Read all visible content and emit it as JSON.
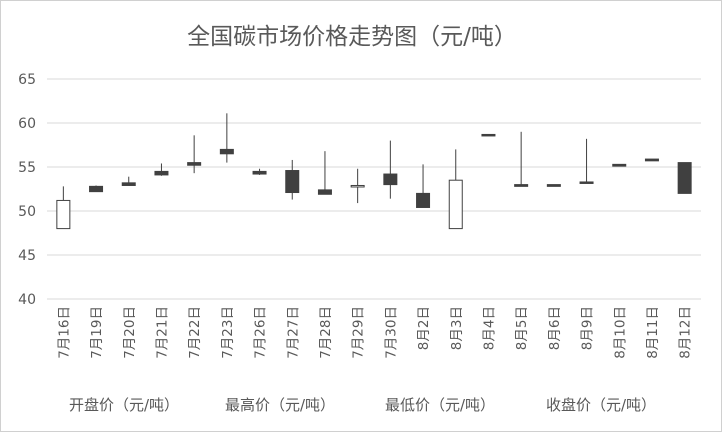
{
  "chart_data": {
    "type": "candlestick",
    "title": "全国碳市场价格走势图（元/吨）",
    "ylim": [
      40,
      65
    ],
    "y_ticks": [
      "40",
      "45",
      "50",
      "55",
      "60",
      "65"
    ],
    "grid": true,
    "legend_position": "bottom",
    "categories": [
      "7月16日",
      "7月19日",
      "7月20日",
      "7月21日",
      "7月22日",
      "7月23日",
      "7月26日",
      "7月27日",
      "7月28日",
      "7月29日",
      "7月30日",
      "8月2日",
      "8月3日",
      "8月4日",
      "8月5日",
      "8月6日",
      "8月9日",
      "8月10日",
      "8月11日",
      "8月12日"
    ],
    "series": [
      {
        "name": "开盘价（元/吨）",
        "values": [
          48.0,
          52.8,
          53.2,
          54.5,
          55.5,
          57.0,
          54.5,
          54.6,
          52.4,
          52.9,
          54.2,
          52.0,
          48.0,
          58.7,
          53.0,
          53.0,
          53.3,
          55.3,
          55.9,
          55.5
        ]
      },
      {
        "name": "最高价（元/吨）",
        "values": [
          52.8,
          52.9,
          53.9,
          55.4,
          58.6,
          61.1,
          54.8,
          55.8,
          56.8,
          54.8,
          58.0,
          55.3,
          57.0,
          58.7,
          59.0,
          53.0,
          58.2,
          55.3,
          55.9,
          55.5
        ]
      },
      {
        "name": "最低价（元/吨）",
        "values": [
          48.0,
          52.2,
          52.9,
          54.0,
          54.3,
          55.5,
          54.1,
          51.3,
          52.0,
          50.9,
          51.4,
          50.4,
          48.0,
          58.6,
          52.8,
          52.8,
          53.2,
          55.1,
          55.7,
          52.0
        ]
      },
      {
        "name": "收盘价（元/吨）",
        "values": [
          51.2,
          52.2,
          52.9,
          54.1,
          55.2,
          56.5,
          54.2,
          52.1,
          51.9,
          52.9,
          53.0,
          50.4,
          53.5,
          58.6,
          52.8,
          52.8,
          53.2,
          55.1,
          55.7,
          52.0
        ]
      }
    ]
  }
}
